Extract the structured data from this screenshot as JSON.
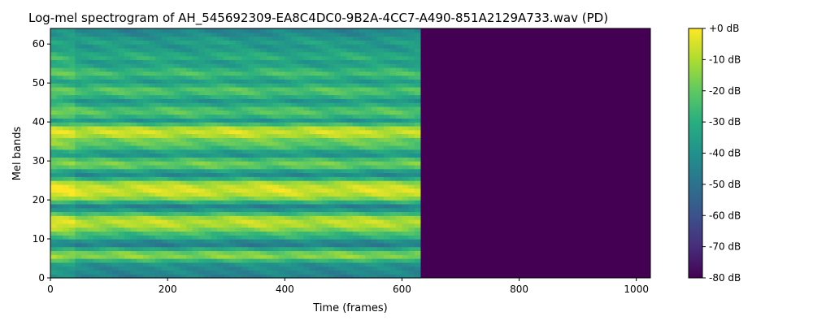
{
  "chart_data": {
    "type": "heatmap",
    "title": "Log-mel spectrogram of AH_545692309-EA8C4DC0-9B2A-4CC7-A490-851A2129A733.wav (PD)",
    "xlabel": "Time (frames)",
    "ylabel": "Mel bands",
    "xlim": [
      0,
      1024
    ],
    "ylim": [
      0,
      64
    ],
    "x_ticks": [
      0,
      200,
      400,
      600,
      800,
      1000
    ],
    "y_ticks": [
      0,
      10,
      20,
      30,
      40,
      50,
      60
    ],
    "signal_end_frame": 632,
    "colorbar": {
      "range": [
        -80,
        0
      ],
      "ticks": [
        "+0 dB",
        "-10 dB",
        "-20 dB",
        "-30 dB",
        "-40 dB",
        "-50 dB",
        "-60 dB",
        "-70 dB",
        "-80 dB"
      ],
      "colormap": "viridis"
    },
    "band_levels_db": [
      -45,
      -43,
      -42,
      -40,
      -28,
      -15,
      -18,
      -32,
      -46,
      -42,
      -30,
      -25,
      -16,
      -10,
      -8,
      -12,
      -25,
      -38,
      -45,
      -30,
      -15,
      -8,
      -5,
      -7,
      -12,
      -30,
      -42,
      -35,
      -22,
      -18,
      -25,
      -38,
      -35,
      -25,
      -20,
      -18,
      -10,
      -6,
      -10,
      -25,
      -38,
      -28,
      -22,
      -24,
      -32,
      -38,
      -30,
      -24,
      -22,
      -30,
      -36,
      -30,
      -24,
      -28,
      -34,
      -36,
      -30,
      -32,
      -36,
      -38,
      -35,
      -38,
      -42,
      -44
    ],
    "silence_level_db": -80
  }
}
